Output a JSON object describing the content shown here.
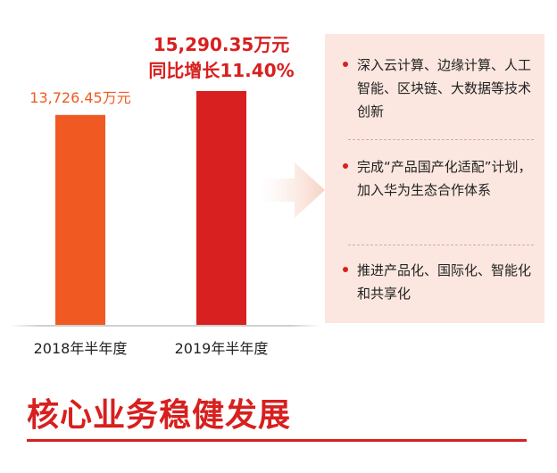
{
  "chart_data": {
    "type": "bar",
    "categories": [
      "2018年半年度",
      "2019年半年度"
    ],
    "values": [
      13726.45,
      15290.35
    ],
    "value_labels": [
      "13,726.45万元",
      "15,290.35万元"
    ],
    "growth_label": "同比增长11.40%",
    "colors": [
      "#f05a22",
      "#d7201f"
    ],
    "title": "",
    "xlabel": "",
    "ylabel": "",
    "ylim": [
      0,
      15290.35
    ]
  },
  "info": {
    "items": [
      {
        "text": "深入云计算、边缘计算、人工智能、区块链、大数据等技术创新"
      },
      {
        "text": "完成“产品国产化适配”计划，加入华为生态合作体系"
      },
      {
        "text": "推进产品化、国际化、智能化和共享化"
      }
    ]
  },
  "footer": {
    "title": "核心业务稳健发展"
  },
  "colors": {
    "accent": "#d7201f",
    "orange": "#f05a22",
    "panel_bg": "#fbe7df"
  }
}
